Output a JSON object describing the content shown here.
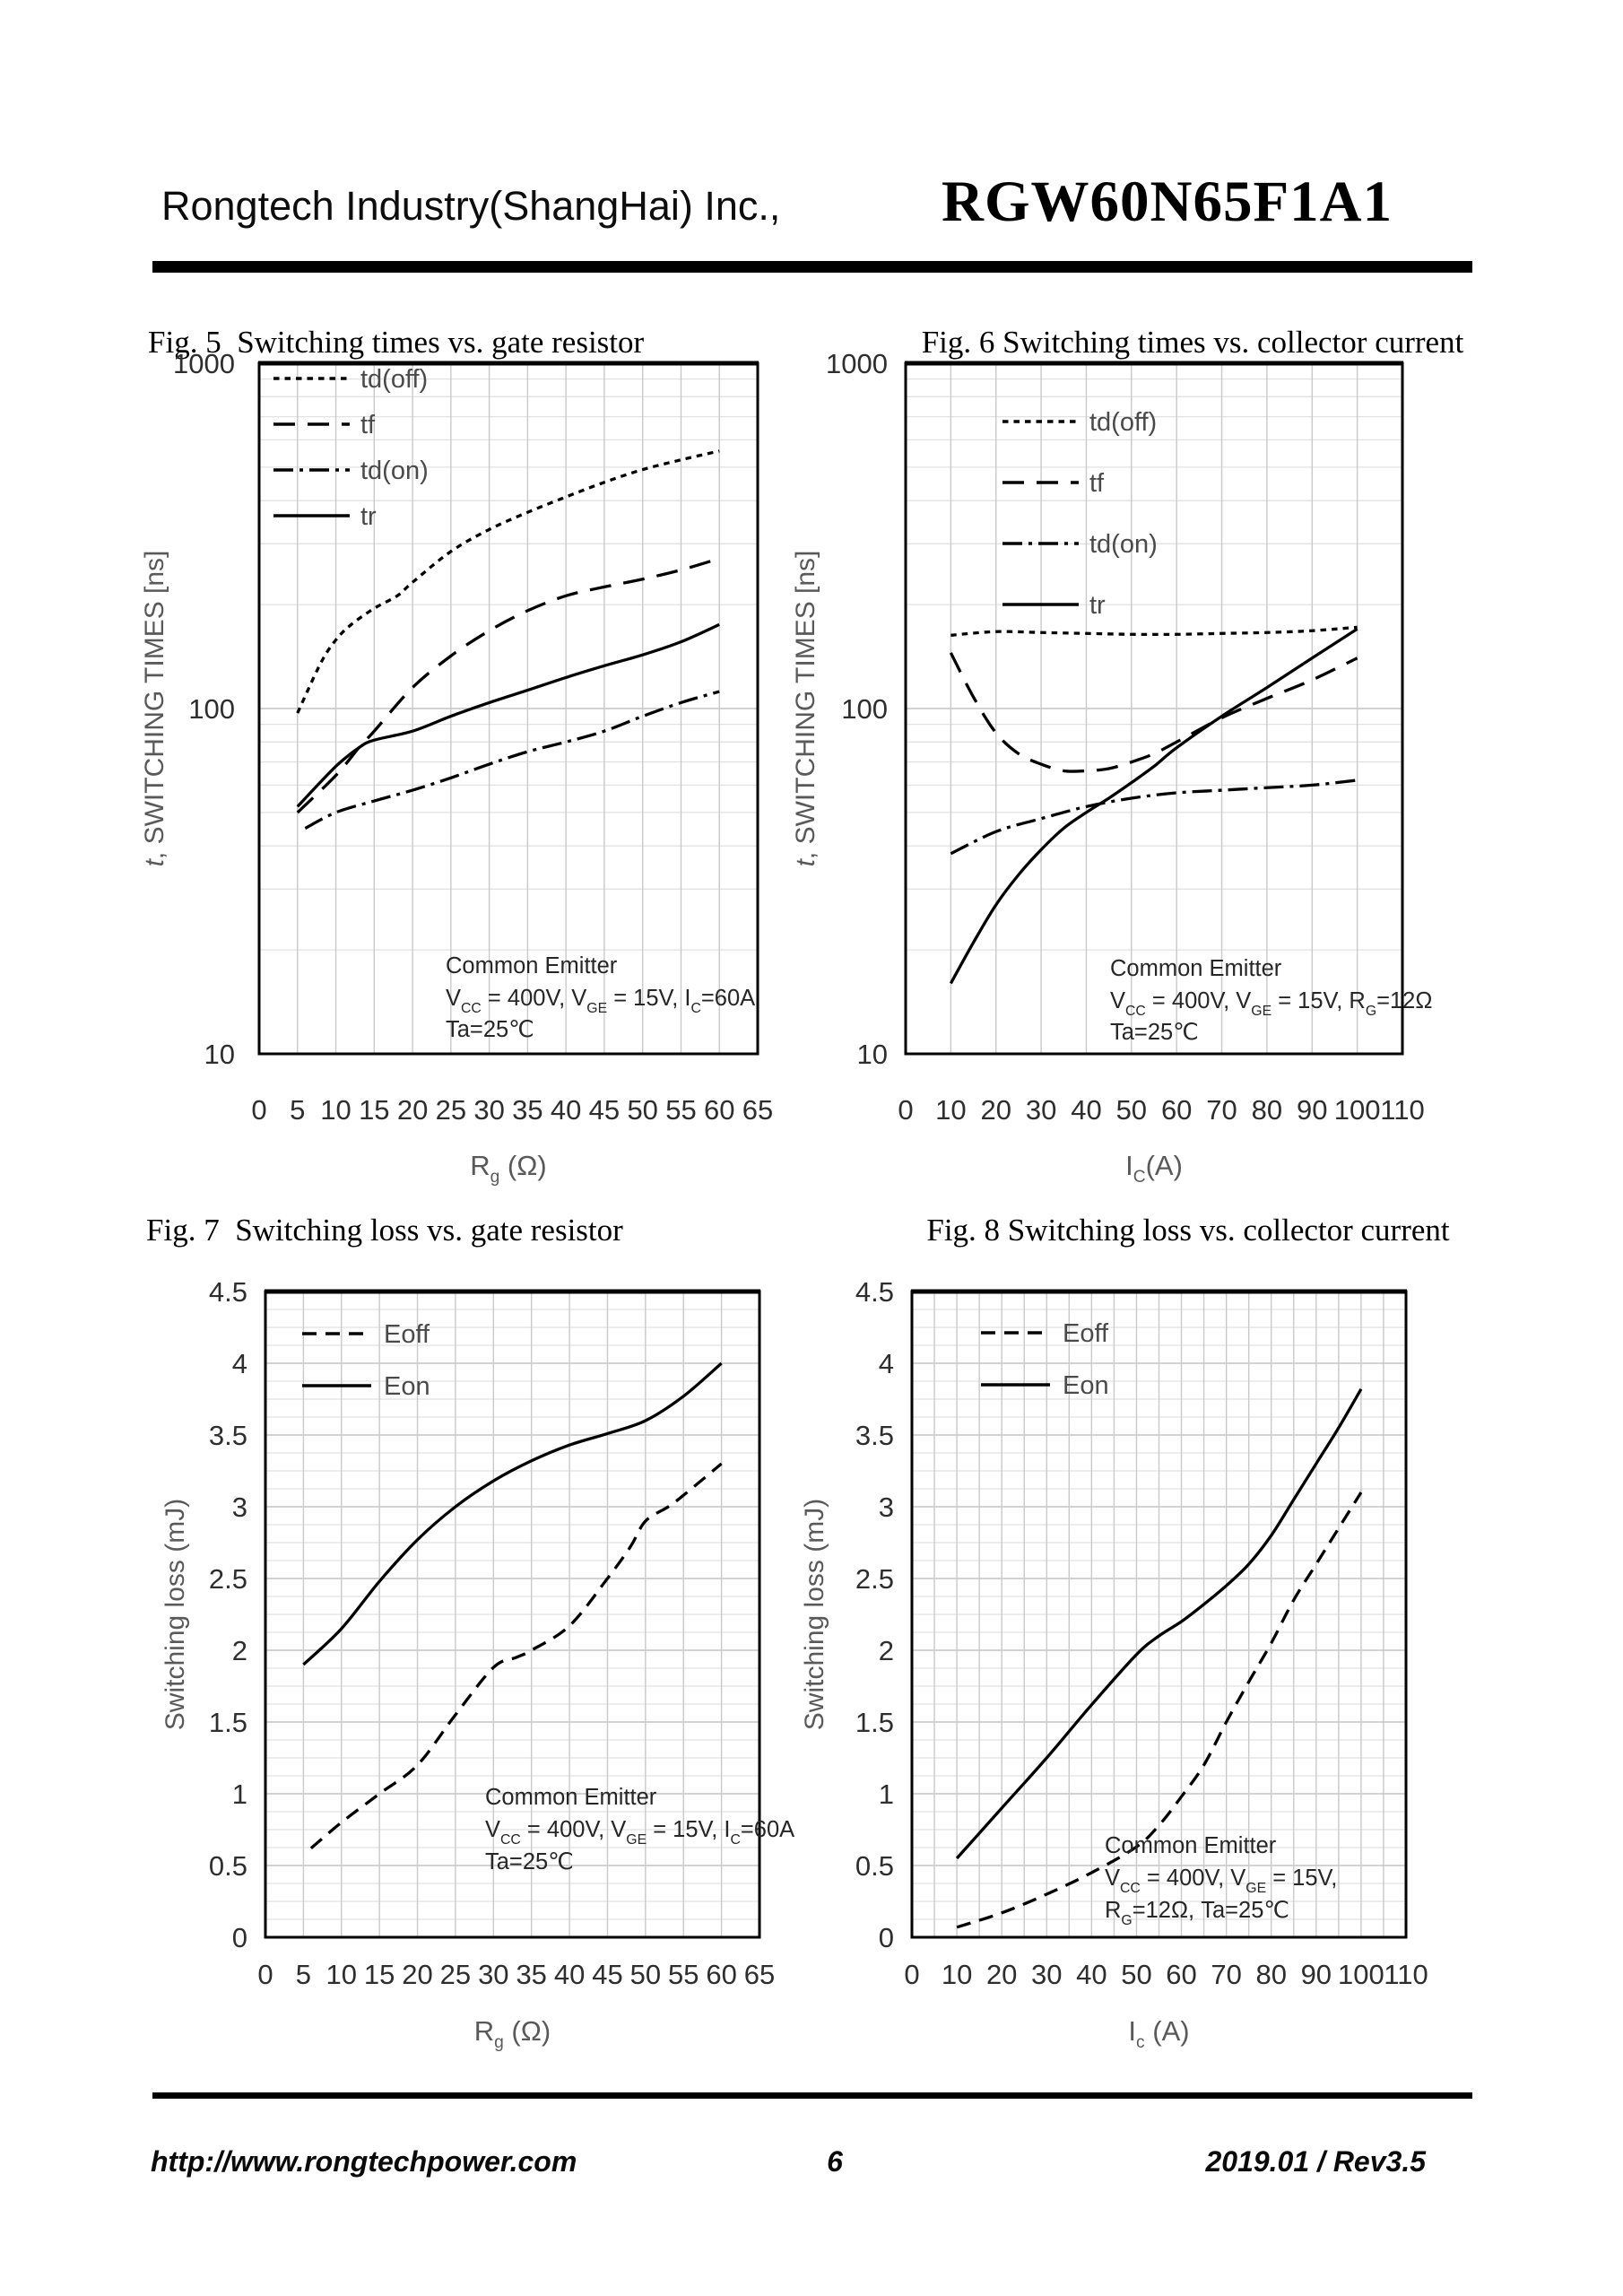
{
  "header": {
    "company": "Rongtech Industry(ShangHai) Inc.,",
    "part_number": "RGW60N65F1A1"
  },
  "footer": {
    "website": "http://www.rongtechpower.com",
    "page_number": "6",
    "revision": "2019.01 / Rev3.5"
  },
  "colors": {
    "curve": "#000000",
    "grid_minor": "#e2e2e2",
    "grid_major": "#c3c3c3",
    "grid_vertical": "#c9c9c9",
    "plot_border": "#000000",
    "tick_text": "#2e2e2e",
    "axis_title": "#595959",
    "legend_text": "#4a4a4a",
    "annotation_text": "#262626"
  },
  "chart_data": [
    {
      "id": "fig5",
      "type": "line",
      "title": "Fig. 5  Switching times vs. gate resistor",
      "xlabel": "R_g_ (Ω)",
      "ylabel": "*t*, SWITCHING TIMES [ns]",
      "x_axis": {
        "min": 0,
        "max": 65,
        "tick_step": 5,
        "grid_step": 5,
        "tick_labels": [
          "0",
          "5",
          "10",
          "15",
          "20",
          "25",
          "30",
          "35",
          "40",
          "45",
          "50",
          "55",
          "60",
          "65"
        ]
      },
      "y_axis": {
        "scale": "log",
        "min": 10,
        "max": 1000,
        "tick_labels": [
          "10",
          "100",
          "1000"
        ]
      },
      "legend": [
        {
          "label": "td(off)",
          "style": "dotted"
        },
        {
          "label": "tf",
          "style": "dashed"
        },
        {
          "label": "td(on)",
          "style": "dashdot"
        },
        {
          "label": "tr",
          "style": "solid"
        }
      ],
      "annotation": [
        "Common Emitter",
        "V_CC_ = 400V, V_GE_ = 15V, I_C_=60A",
        "Ta=25℃"
      ],
      "series": [
        {
          "name": "td(off)",
          "style": "dotted",
          "points": [
            [
              5,
              97
            ],
            [
              8,
              135
            ],
            [
              10,
              158
            ],
            [
              12,
              175
            ],
            [
              15,
              195
            ],
            [
              18,
              212
            ],
            [
              20,
              232
            ],
            [
              25,
              285
            ],
            [
              30,
              330
            ],
            [
              35,
              370
            ],
            [
              40,
              410
            ],
            [
              45,
              452
            ],
            [
              50,
              492
            ],
            [
              55,
              525
            ],
            [
              60,
              557
            ]
          ]
        },
        {
          "name": "tf",
          "style": "dashed",
          "points": [
            [
              5,
              50
            ],
            [
              10,
              64
            ],
            [
              13,
              77
            ],
            [
              15,
              86
            ],
            [
              20,
              115
            ],
            [
              25,
              142
            ],
            [
              30,
              168
            ],
            [
              35,
              192
            ],
            [
              40,
              212
            ],
            [
              45,
              225
            ],
            [
              50,
              237
            ],
            [
              55,
              252
            ],
            [
              60,
              272
            ]
          ]
        },
        {
          "name": "td(on)",
          "style": "dashdot",
          "points": [
            [
              6,
              45
            ],
            [
              10,
              50
            ],
            [
              15,
              54
            ],
            [
              20,
              58
            ],
            [
              25,
              63
            ],
            [
              30,
              69
            ],
            [
              35,
              75
            ],
            [
              40,
              80
            ],
            [
              45,
              86
            ],
            [
              50,
              95
            ],
            [
              55,
              104
            ],
            [
              60,
              112
            ]
          ]
        },
        {
          "name": "tr",
          "style": "solid",
          "points": [
            [
              5,
              52
            ],
            [
              10,
              68
            ],
            [
              13,
              77
            ],
            [
              15,
              81
            ],
            [
              20,
              86
            ],
            [
              25,
              95
            ],
            [
              30,
              104
            ],
            [
              35,
              113
            ],
            [
              40,
              123
            ],
            [
              45,
              133
            ],
            [
              50,
              143
            ],
            [
              55,
              156
            ],
            [
              60,
              175
            ]
          ]
        }
      ]
    },
    {
      "id": "fig6",
      "type": "line",
      "title": "Fig. 6 Switching times vs. collector current",
      "xlabel": "I_C_(A)",
      "ylabel": "*t*, SWITCHING TIMES [ns]",
      "x_axis": {
        "min": 0,
        "max": 110,
        "tick_step": 10,
        "grid_step": 10,
        "tick_labels": [
          "0",
          "10",
          "20",
          "30",
          "40",
          "50",
          "60",
          "70",
          "80",
          "90",
          "100",
          "110"
        ]
      },
      "y_axis": {
        "scale": "log",
        "min": 10,
        "max": 1000,
        "tick_labels": [
          "10",
          "100",
          "1000"
        ]
      },
      "legend": [
        {
          "label": "td(off)",
          "style": "dotted"
        },
        {
          "label": "tf",
          "style": "dashed"
        },
        {
          "label": "td(on)",
          "style": "dashdot"
        },
        {
          "label": "tr",
          "style": "solid"
        }
      ],
      "annotation": [
        "Common Emitter",
        "V_CC_ = 400V, V_GE_ = 15V, R_G_=12Ω",
        "Ta=25℃"
      ],
      "series": [
        {
          "name": "td(off)",
          "style": "dotted",
          "points": [
            [
              10,
              163
            ],
            [
              20,
              167
            ],
            [
              30,
              166
            ],
            [
              40,
              165
            ],
            [
              50,
              164
            ],
            [
              60,
              164
            ],
            [
              70,
              165
            ],
            [
              80,
              166
            ],
            [
              90,
              168
            ],
            [
              100,
              172
            ]
          ]
        },
        {
          "name": "tf",
          "style": "dashed",
          "points": [
            [
              10,
              145
            ],
            [
              15,
              108
            ],
            [
              20,
              85
            ],
            [
              25,
              74
            ],
            [
              30,
              69
            ],
            [
              35,
              66
            ],
            [
              40,
              66
            ],
            [
              45,
              67
            ],
            [
              50,
              70
            ],
            [
              55,
              74
            ],
            [
              60,
              80
            ],
            [
              70,
              94
            ],
            [
              80,
              107
            ],
            [
              90,
              121
            ],
            [
              100,
              140
            ]
          ]
        },
        {
          "name": "td(on)",
          "style": "dashdot",
          "points": [
            [
              10,
              38
            ],
            [
              20,
              44
            ],
            [
              30,
              48
            ],
            [
              40,
              52
            ],
            [
              50,
              55
            ],
            [
              60,
              57
            ],
            [
              70,
              58
            ],
            [
              80,
              59
            ],
            [
              90,
              60
            ],
            [
              100,
              62
            ]
          ]
        },
        {
          "name": "tr",
          "style": "solid",
          "points": [
            [
              10,
              16
            ],
            [
              15,
              21
            ],
            [
              20,
              27
            ],
            [
              25,
              33
            ],
            [
              30,
              39
            ],
            [
              35,
              45
            ],
            [
              40,
              50
            ],
            [
              45,
              55
            ],
            [
              50,
              61
            ],
            [
              55,
              68
            ],
            [
              60,
              77
            ],
            [
              70,
              95
            ],
            [
              80,
              115
            ],
            [
              90,
              140
            ],
            [
              100,
              170
            ]
          ]
        }
      ]
    },
    {
      "id": "fig7",
      "type": "line",
      "title": "Fig. 7  Switching loss vs. gate resistor",
      "xlabel": "R_g_ (Ω)",
      "ylabel": "Switching loss (mJ)",
      "x_axis": {
        "min": 0,
        "max": 65,
        "tick_step": 5,
        "grid_step": 5,
        "tick_labels": [
          "0",
          "5",
          "10",
          "15",
          "20",
          "25",
          "30",
          "35",
          "40",
          "45",
          "50",
          "55",
          "60",
          "65"
        ]
      },
      "y_axis": {
        "scale": "linear",
        "min": 0,
        "max": 4.5,
        "minor_step": 0.125,
        "major_step": 0.5,
        "tick_labels": [
          "0",
          "0.5",
          "1",
          "1.5",
          "2",
          "2.5",
          "3",
          "3.5",
          "4",
          "4.5"
        ]
      },
      "legend": [
        {
          "label": "Eoff",
          "style": "dashed_sm"
        },
        {
          "label": "Eon",
          "style": "solid"
        }
      ],
      "annotation": [
        "Common Emitter",
        "V_CC_ = 400V, V_GE_ = 15V, I_C_=60A",
        "Ta=25℃"
      ],
      "series": [
        {
          "name": "Eoff",
          "style": "dashed_sm",
          "points": [
            [
              6,
              0.62
            ],
            [
              10,
              0.8
            ],
            [
              15,
              1.0
            ],
            [
              20,
              1.2
            ],
            [
              25,
              1.55
            ],
            [
              30,
              1.88
            ],
            [
              33,
              1.95
            ],
            [
              35,
              2.0
            ],
            [
              40,
              2.17
            ],
            [
              45,
              2.5
            ],
            [
              48,
              2.72
            ],
            [
              50,
              2.9
            ],
            [
              53,
              3.0
            ],
            [
              55,
              3.08
            ],
            [
              60,
              3.3
            ]
          ]
        },
        {
          "name": "Eon",
          "style": "solid",
          "points": [
            [
              5,
              1.9
            ],
            [
              10,
              2.15
            ],
            [
              15,
              2.48
            ],
            [
              20,
              2.77
            ],
            [
              25,
              3.0
            ],
            [
              30,
              3.18
            ],
            [
              35,
              3.32
            ],
            [
              40,
              3.43
            ],
            [
              45,
              3.51
            ],
            [
              50,
              3.6
            ],
            [
              55,
              3.77
            ],
            [
              60,
              4.0
            ]
          ]
        }
      ]
    },
    {
      "id": "fig8",
      "type": "line",
      "title": "Fig. 8 Switching loss vs. collector current",
      "xlabel": "I_c_ (A)",
      "ylabel": "Switching loss (mJ)",
      "x_axis": {
        "min": 0,
        "max": 110,
        "tick_step": 10,
        "grid_step": 5,
        "tick_labels": [
          "0",
          "10",
          "20",
          "30",
          "40",
          "50",
          "60",
          "70",
          "80",
          "90",
          "100",
          "110"
        ]
      },
      "y_axis": {
        "scale": "linear",
        "min": 0,
        "max": 4.5,
        "minor_step": 0.125,
        "major_step": 0.5,
        "tick_labels": [
          "0",
          "0.5",
          "1",
          "1.5",
          "2",
          "2.5",
          "3",
          "3.5",
          "4",
          "4.5"
        ]
      },
      "legend": [
        {
          "label": "Eoff",
          "style": "dashed_sm"
        },
        {
          "label": "Eon",
          "style": "solid"
        }
      ],
      "annotation": [
        "Common Emitter",
        "V_CC_ = 400V, V_GE_ = 15V,",
        "R_G_=12Ω,   Ta=25℃"
      ],
      "series": [
        {
          "name": "Eoff",
          "style": "dashed_sm",
          "points": [
            [
              10,
              0.07
            ],
            [
              20,
              0.17
            ],
            [
              30,
              0.3
            ],
            [
              40,
              0.45
            ],
            [
              50,
              0.63
            ],
            [
              55,
              0.78
            ],
            [
              60,
              0.98
            ],
            [
              65,
              1.2
            ],
            [
              70,
              1.5
            ],
            [
              75,
              1.78
            ],
            [
              80,
              2.05
            ],
            [
              85,
              2.35
            ],
            [
              90,
              2.6
            ],
            [
              95,
              2.85
            ],
            [
              100,
              3.1
            ]
          ]
        },
        {
          "name": "Eon",
          "style": "solid",
          "points": [
            [
              10,
              0.55
            ],
            [
              20,
              0.9
            ],
            [
              30,
              1.25
            ],
            [
              40,
              1.62
            ],
            [
              50,
              1.97
            ],
            [
              55,
              2.1
            ],
            [
              60,
              2.2
            ],
            [
              65,
              2.32
            ],
            [
              70,
              2.45
            ],
            [
              75,
              2.6
            ],
            [
              80,
              2.8
            ],
            [
              85,
              3.05
            ],
            [
              90,
              3.3
            ],
            [
              95,
              3.55
            ],
            [
              100,
              3.82
            ]
          ]
        }
      ]
    }
  ]
}
